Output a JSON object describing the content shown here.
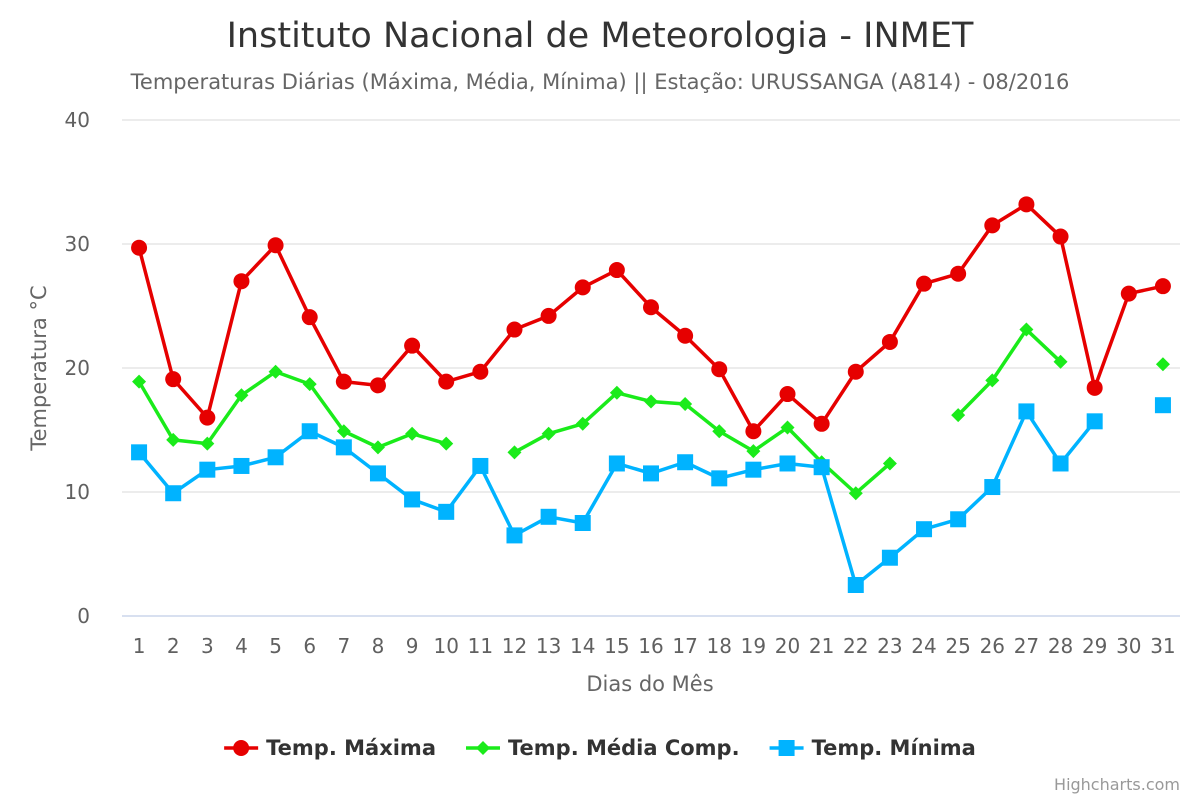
{
  "chart_data": {
    "type": "line",
    "title": "Instituto Nacional de Meteorologia - INMET",
    "subtitle": "Temperaturas Diárias (Máxima, Média, Mínima) || Estação: URUSSANGA (A814) - 08/2016",
    "xlabel": "Dias do Mês",
    "ylabel": "Temperatura °C",
    "ylim": [
      0,
      40
    ],
    "yticks": [
      0,
      10,
      20,
      30,
      40
    ],
    "categories": [
      "1",
      "2",
      "3",
      "4",
      "5",
      "6",
      "7",
      "8",
      "9",
      "10",
      "11",
      "12",
      "13",
      "14",
      "15",
      "16",
      "17",
      "18",
      "19",
      "20",
      "21",
      "22",
      "23",
      "24",
      "25",
      "26",
      "27",
      "28",
      "29",
      "30",
      "31"
    ],
    "grid": true,
    "legend_position": "bottom-center",
    "credits": "Highcharts.com",
    "series": [
      {
        "name": "Temp. Máxima",
        "color": "#e60000",
        "marker": "circle",
        "values": [
          29.7,
          19.1,
          16.0,
          27.0,
          29.9,
          24.1,
          18.9,
          18.6,
          21.8,
          18.9,
          19.7,
          23.1,
          24.2,
          26.5,
          27.9,
          24.9,
          22.6,
          19.9,
          14.9,
          17.9,
          15.5,
          19.7,
          22.1,
          26.8,
          27.6,
          31.5,
          33.2,
          30.6,
          18.4,
          26.0,
          26.6
        ]
      },
      {
        "name": "Temp. Média Comp.",
        "color": "#1aeb1a",
        "marker": "diamond",
        "values": [
          18.9,
          14.2,
          13.9,
          17.8,
          19.7,
          18.7,
          14.9,
          13.6,
          14.7,
          13.9,
          null,
          13.2,
          14.7,
          15.5,
          18.0,
          17.3,
          17.1,
          14.9,
          13.3,
          15.2,
          12.4,
          9.9,
          12.3,
          null,
          16.2,
          19.0,
          23.1,
          20.5,
          null,
          null,
          20.3
        ]
      },
      {
        "name": "Temp. Mínima",
        "color": "#00b3ff",
        "marker": "square",
        "values": [
          13.2,
          9.9,
          11.8,
          12.1,
          12.8,
          14.9,
          13.6,
          11.5,
          9.4,
          8.4,
          12.1,
          6.5,
          8.0,
          7.5,
          12.3,
          11.5,
          12.4,
          11.1,
          11.8,
          12.3,
          12.0,
          2.5,
          4.7,
          7.0,
          7.8,
          10.4,
          16.5,
          12.3,
          15.7,
          null,
          17.0
        ]
      }
    ]
  }
}
